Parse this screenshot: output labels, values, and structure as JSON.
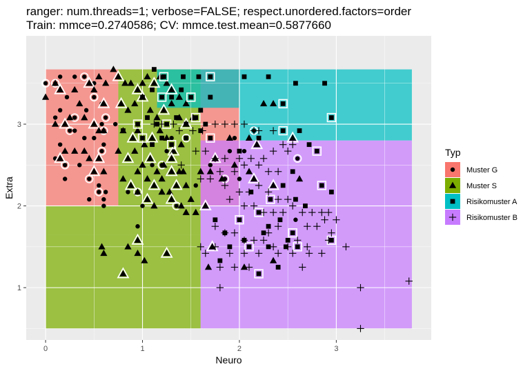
{
  "chart_data": {
    "type": "scatter",
    "title": "ranger: num.threads=1; verbose=FALSE; respect.unordered.factors=order",
    "subtitle": "Train: mmce=0.2740586; CV: mmce.test.mean=0.5877660",
    "xlabel": "Neuro",
    "ylabel": "Extra",
    "xlim": [
      -0.2,
      3.98
    ],
    "ylim": [
      0.36,
      4.08
    ],
    "x_ticks": [
      0,
      1,
      2,
      3
    ],
    "y_ticks": [
      1,
      2,
      3
    ],
    "x_tick_labels": [
      "0",
      "1",
      "2",
      "3"
    ],
    "y_tick_labels": [
      "1",
      "2",
      "3"
    ],
    "grid": true,
    "legend": {
      "title": "Typ",
      "placement": "right",
      "entries": [
        {
          "label": "Muster G",
          "color": "#F8766D",
          "shape": "circle"
        },
        {
          "label": "Muster S",
          "color": "#7CAE00",
          "shape": "triangle"
        },
        {
          "label": "Risikomuster A",
          "color": "#00BFC4",
          "shape": "square"
        },
        {
          "label": "Risikomuster B",
          "color": "#C77CFF",
          "shape": "plus"
        }
      ]
    },
    "background_regions": [
      {
        "class": "Muster G",
        "x": [
          0,
          0.75
        ],
        "y": [
          2.0,
          3.67
        ]
      },
      {
        "class": "Muster S",
        "x": [
          0,
          1.6
        ],
        "y": [
          0.5,
          1.65
        ]
      },
      {
        "class": "Muster S",
        "x": [
          0,
          1.6
        ],
        "y": [
          1.65,
          2.0
        ]
      },
      {
        "class": "Muster S",
        "x": [
          0.75,
          1.6
        ],
        "y": [
          2.0,
          3.67
        ]
      },
      {
        "class": "Muster G",
        "x": [
          1.6,
          2.0
        ],
        "y": [
          2.0,
          3.67
        ]
      },
      {
        "class": "Risikomuster A",
        "x": [
          2.0,
          3.78
        ],
        "y": [
          2.8,
          3.67
        ]
      },
      {
        "class": "Risikomuster A",
        "x": [
          1.15,
          2.0
        ],
        "y": [
          3.2,
          3.67
        ]
      },
      {
        "class": "Risikomuster B",
        "x": [
          1.6,
          3.78
        ],
        "y": [
          0.5,
          2.8
        ]
      }
    ],
    "series": [
      {
        "name": "Muster G",
        "x": [
          0.0,
          0.15,
          0.22,
          0.25,
          0.3,
          0.42,
          0.5,
          0.58,
          0.6,
          0.6,
          0.1,
          0.15,
          0.2,
          0.35,
          0.45,
          0.55,
          0.6,
          0.1,
          0.3,
          0.4,
          0.5,
          0.58,
          0.62,
          0.2,
          0.45,
          0.55,
          0.6,
          0.1,
          0.15,
          0.3,
          0.4,
          0.5,
          0.58,
          0.62,
          0.72,
          0.85,
          0.95,
          1.0,
          1.1,
          1.2,
          1.25,
          1.3,
          1.45,
          1.55,
          1.7,
          1.85,
          1.95,
          2.05,
          2.15,
          1.9,
          2.0,
          2.6,
          2.58,
          0.95,
          1.35
        ],
        "y": [
          3.5,
          3.17,
          3.33,
          2.92,
          2.92,
          3.17,
          3.33,
          3.0,
          2.75,
          2.92,
          2.58,
          2.75,
          2.5,
          2.5,
          2.08,
          2.17,
          2.0,
          3.08,
          3.08,
          2.83,
          2.83,
          2.67,
          2.17,
          2.33,
          2.33,
          2.25,
          2.08,
          3.5,
          3.58,
          3.58,
          3.58,
          3.5,
          3.25,
          3.08,
          3.0,
          2.17,
          2.17,
          2.0,
          2.5,
          2.5,
          2.67,
          2.83,
          2.83,
          2.25,
          2.5,
          2.33,
          2.83,
          2.67,
          2.92,
          2.67,
          2.33,
          2.58,
          1.83,
          1.75,
          2.0
        ]
      },
      {
        "name": "Muster S",
        "x": [
          0.0,
          0.1,
          0.15,
          0.3,
          0.35,
          0.45,
          0.5,
          0.55,
          0.6,
          0.62,
          0.1,
          0.2,
          0.25,
          0.4,
          0.5,
          0.55,
          0.6,
          0.15,
          0.3,
          0.45,
          0.55,
          0.2,
          0.4,
          0.5,
          0.6,
          0.7,
          0.75,
          0.82,
          0.88,
          0.95,
          1.0,
          1.05,
          1.12,
          1.18,
          1.25,
          1.3,
          1.38,
          1.45,
          0.78,
          0.85,
          0.92,
          1.0,
          1.08,
          1.15,
          1.22,
          1.3,
          1.38,
          1.45,
          1.52,
          0.8,
          0.9,
          0.95,
          1.02,
          1.1,
          1.18,
          1.25,
          1.32,
          1.4,
          0.75,
          0.85,
          0.92,
          1.0,
          1.08,
          1.15,
          1.22,
          1.3,
          1.38,
          0.8,
          0.88,
          0.95,
          1.05,
          1.12,
          1.2,
          1.28,
          1.35,
          1.42,
          0.95,
          1.05,
          1.12,
          1.2,
          1.3,
          1.4,
          1.5,
          1.3,
          1.45,
          1.6,
          1.75,
          1.9,
          2.1,
          2.18,
          2.25,
          2.35,
          2.55,
          1.82,
          1.95,
          2.15,
          1.7,
          2.1,
          2.35,
          2.62,
          0.6,
          0.8,
          0.95,
          1.02,
          1.25,
          0.58,
          0.85,
          0.95,
          2.05,
          1.68,
          1.72,
          1.45,
          1.55,
          1.65,
          2.35
        ],
        "y": [
          3.33,
          3.5,
          3.42,
          3.42,
          3.25,
          3.5,
          3.42,
          3.58,
          3.25,
          3.5,
          3.0,
          3.0,
          3.08,
          3.08,
          3.0,
          2.92,
          2.92,
          2.58,
          2.67,
          2.58,
          2.58,
          2.67,
          2.67,
          2.42,
          2.42,
          3.67,
          3.58,
          3.5,
          3.5,
          3.42,
          3.5,
          3.58,
          3.5,
          3.58,
          3.5,
          3.42,
          3.33,
          3.25,
          3.25,
          3.17,
          3.25,
          3.33,
          3.17,
          3.08,
          3.17,
          3.25,
          3.08,
          3.0,
          3.08,
          2.92,
          2.83,
          2.92,
          2.75,
          2.83,
          2.92,
          2.83,
          2.67,
          2.75,
          2.67,
          2.58,
          2.67,
          2.5,
          2.58,
          2.42,
          2.5,
          2.58,
          2.42,
          2.33,
          2.25,
          2.42,
          2.33,
          2.25,
          2.33,
          2.17,
          2.25,
          2.42,
          2.17,
          2.08,
          2.0,
          2.17,
          2.08,
          2.0,
          2.08,
          2.42,
          2.25,
          2.42,
          2.58,
          2.83,
          2.83,
          2.75,
          3.25,
          3.25,
          2.83,
          2.33,
          2.5,
          2.33,
          2.42,
          2.42,
          2.25,
          2.33,
          1.42,
          1.17,
          1.42,
          1.33,
          1.42,
          1.5,
          1.5,
          1.58,
          1.25,
          1.25,
          1.5,
          1.92,
          1.92,
          2.0,
          1.33
        ]
      },
      {
        "name": "Risikomuster A",
        "x": [
          1.12,
          1.22,
          1.42,
          1.58,
          1.7,
          2.05,
          2.3,
          2.45,
          2.58,
          2.88,
          2.95,
          1.0,
          1.1,
          1.2,
          1.3,
          1.4,
          1.5,
          1.6,
          1.7,
          0.95,
          1.05,
          1.15,
          1.25,
          1.35,
          1.45,
          1.55,
          1.65,
          0.8,
          1.0,
          1.1,
          1.2,
          1.3,
          1.45,
          1.6,
          1.7,
          2.0,
          2.2,
          2.45,
          2.62,
          2.72,
          2.8,
          2.55,
          2.45,
          2.85,
          2.95,
          2.12,
          2.32,
          2.58,
          2.68,
          2.2,
          2.42,
          1.75,
          2.0,
          2.25,
          2.3,
          2.55,
          2.48,
          1.9,
          2.1,
          1.8,
          2.3,
          2.6,
          2.4,
          2.5,
          2.95,
          1.85,
          2.05,
          2.2
        ],
        "y": [
          3.67,
          3.58,
          3.58,
          3.58,
          3.58,
          3.58,
          3.58,
          3.25,
          3.5,
          3.5,
          3.08,
          3.33,
          3.42,
          3.33,
          3.33,
          3.42,
          3.33,
          3.17,
          3.33,
          3.0,
          3.08,
          3.0,
          3.0,
          3.08,
          3.0,
          3.08,
          3.0,
          2.92,
          2.83,
          2.75,
          2.83,
          2.75,
          2.83,
          2.92,
          2.83,
          2.67,
          2.83,
          2.92,
          2.92,
          2.75,
          2.67,
          2.42,
          2.25,
          2.25,
          2.17,
          2.17,
          2.08,
          2.08,
          2.0,
          1.92,
          1.83,
          1.83,
          1.83,
          1.67,
          1.75,
          1.67,
          1.5,
          1.5,
          1.5,
          1.33,
          1.5,
          1.5,
          1.25,
          1.58,
          1.58,
          1.67,
          1.58,
          1.17
        ]
      },
      {
        "name": "Risikomuster B",
        "x": [
          1.12,
          1.2,
          1.32,
          1.38,
          1.52,
          1.62,
          1.75,
          1.85,
          1.95,
          2.05,
          2.15,
          2.2,
          2.35,
          2.45,
          2.55,
          1.4,
          1.55,
          1.65,
          1.75,
          1.85,
          2.0,
          2.12,
          2.25,
          2.35,
          2.5,
          1.6,
          1.7,
          1.8,
          1.95,
          2.05,
          2.2,
          2.3,
          2.4,
          1.85,
          2.0,
          2.1,
          2.2,
          2.3,
          2.4,
          2.5,
          1.9,
          2.05,
          2.15,
          2.25,
          2.35,
          2.45,
          2.55,
          2.65,
          2.75,
          2.85,
          2.92,
          2.88,
          3.0,
          2.7,
          2.8,
          2.95,
          3.1,
          2.6,
          2.7,
          2.85,
          2.72,
          2.92,
          2.3,
          2.4,
          1.75,
          1.85,
          1.95,
          2.05,
          2.15,
          2.25,
          1.6,
          1.75,
          1.9,
          2.05,
          2.2,
          2.4,
          2.55,
          1.65,
          1.8,
          1.95,
          2.1,
          3.25,
          3.75,
          3.25,
          1.8,
          2.35,
          2.5,
          2.65
        ],
        "y": [
          3.0,
          3.0,
          3.0,
          2.92,
          2.92,
          2.92,
          3.0,
          3.0,
          3.0,
          3.0,
          2.92,
          2.92,
          2.92,
          2.75,
          2.75,
          2.5,
          2.67,
          2.67,
          2.58,
          2.58,
          2.58,
          2.58,
          2.58,
          2.67,
          2.67,
          2.33,
          2.33,
          2.42,
          2.42,
          2.5,
          2.5,
          2.42,
          2.42,
          2.25,
          2.17,
          2.17,
          2.25,
          2.17,
          2.08,
          2.08,
          2.08,
          2.0,
          2.0,
          1.92,
          1.92,
          1.92,
          2.0,
          1.92,
          1.92,
          1.92,
          1.92,
          1.83,
          1.83,
          1.75,
          1.75,
          1.67,
          1.5,
          1.58,
          1.5,
          1.42,
          1.42,
          1.58,
          1.67,
          1.75,
          1.75,
          1.67,
          1.67,
          1.58,
          1.58,
          1.58,
          1.5,
          1.5,
          1.42,
          1.42,
          1.42,
          1.42,
          1.42,
          1.42,
          1.25,
          1.25,
          1.25,
          1.0,
          1.08,
          0.5,
          1.0,
          1.5,
          1.5,
          1.25
        ]
      }
    ]
  }
}
